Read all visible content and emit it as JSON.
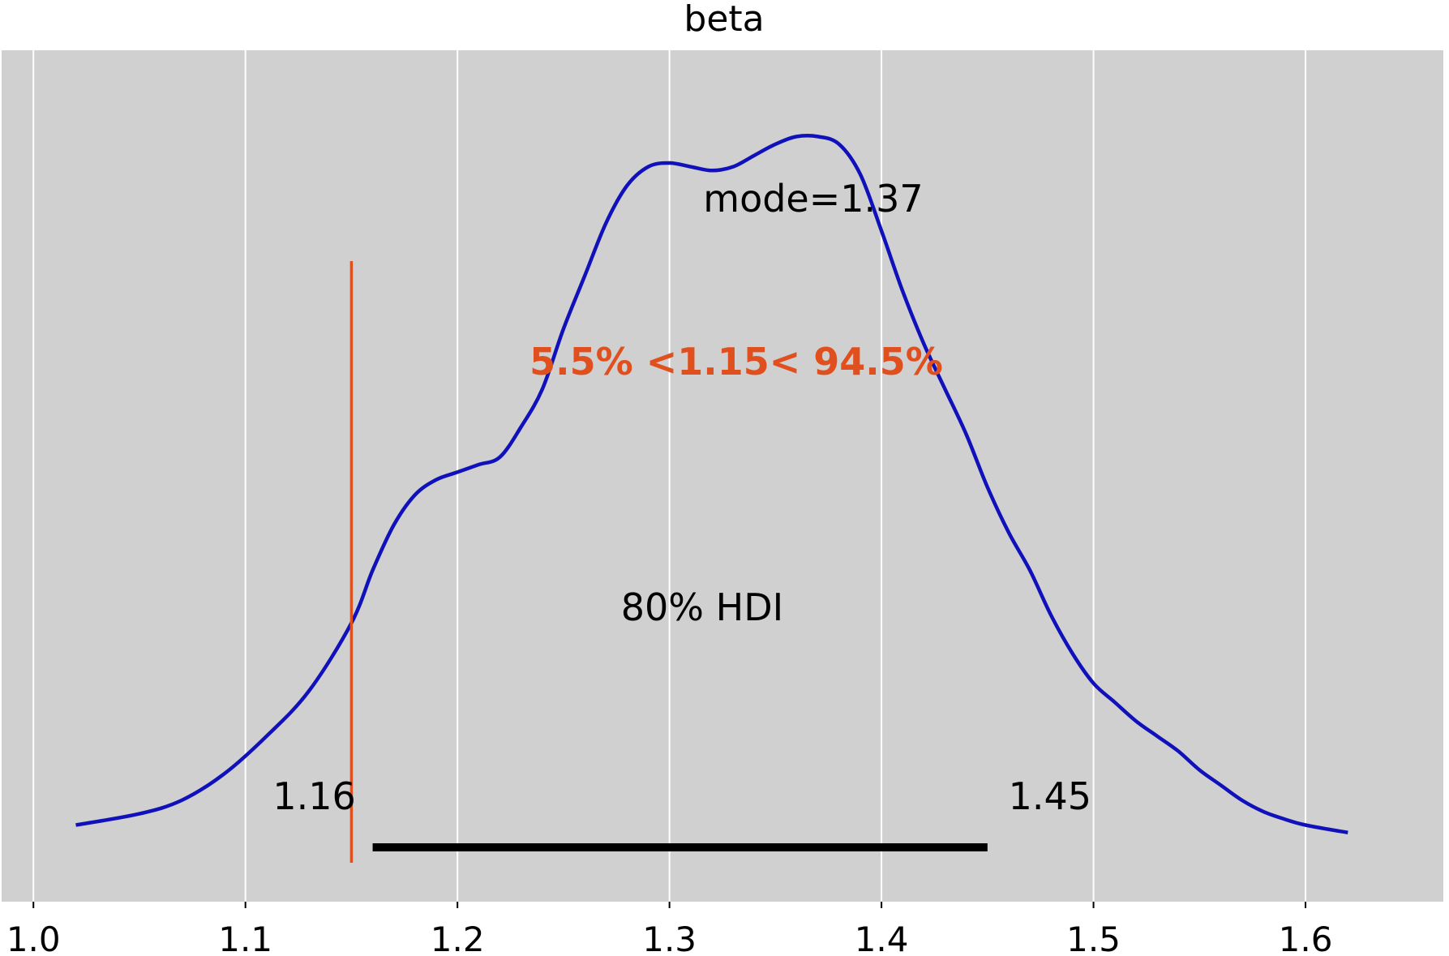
{
  "chart_data": {
    "type": "line",
    "title": "beta",
    "xlabel": "",
    "ylabel": "",
    "xlim": [
      0.985,
      1.665
    ],
    "ylim": [
      0,
      1.0
    ],
    "grid": "vertical",
    "x_ticks": [
      1.0,
      1.1,
      1.2,
      1.3,
      1.4,
      1.5,
      1.6
    ],
    "x_tick_labels": [
      "1.0",
      "1.1",
      "1.2",
      "1.3",
      "1.4",
      "1.5",
      "1.6"
    ],
    "series": [
      {
        "x": [
          0.95,
          0.97,
          1.0,
          1.02,
          1.05,
          1.07,
          1.09,
          1.11,
          1.13,
          1.15,
          1.16,
          1.17,
          1.18,
          1.19,
          1.2,
          1.21,
          1.22,
          1.23,
          1.24,
          1.25,
          1.26,
          1.27,
          1.28,
          1.29,
          1.3,
          1.31,
          1.32,
          1.33,
          1.34,
          1.35,
          1.36,
          1.37,
          1.38,
          1.39,
          1.4,
          1.41,
          1.42,
          1.43,
          1.44,
          1.45,
          1.46,
          1.47,
          1.48,
          1.49,
          1.5,
          1.51,
          1.52,
          1.53,
          1.54,
          1.55,
          1.56,
          1.57,
          1.58,
          1.59,
          1.6,
          1.62,
          1.64,
          1.655
        ],
        "y": [
          0.0,
          0.005,
          0.012,
          0.022,
          0.037,
          0.055,
          0.09,
          0.14,
          0.2,
          0.29,
          0.36,
          0.42,
          0.46,
          0.48,
          0.49,
          0.5,
          0.51,
          0.55,
          0.6,
          0.68,
          0.75,
          0.82,
          0.87,
          0.895,
          0.9,
          0.895,
          0.89,
          0.895,
          0.91,
          0.925,
          0.935,
          0.935,
          0.925,
          0.885,
          0.81,
          0.73,
          0.66,
          0.6,
          0.54,
          0.47,
          0.41,
          0.36,
          0.3,
          0.25,
          0.21,
          0.185,
          0.16,
          0.14,
          0.12,
          0.095,
          0.075,
          0.055,
          0.04,
          0.03,
          0.022,
          0.012,
          0.005,
          0.0
        ],
        "color": "#1111bb"
      }
    ],
    "annotations": {
      "mode_label": "mode=1.37",
      "hdi_label": "80% HDI",
      "hdi_low": 1.16,
      "hdi_high": 1.45,
      "hdi_low_label": "1.16",
      "hdi_high_label": "1.45",
      "ref_value": 1.15,
      "ref_label": "5.5% <1.15< 94.5%",
      "ref_color": "#e0501f"
    },
    "colors": {
      "background": "#d0d0d0",
      "grid": "#ffffff",
      "hdi_bar": "#000000"
    }
  }
}
